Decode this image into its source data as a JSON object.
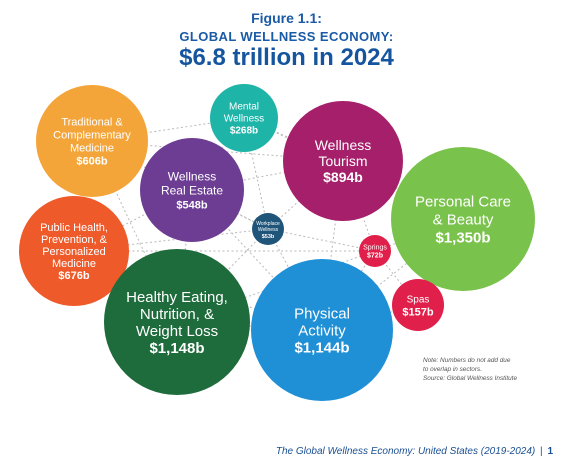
{
  "header": {
    "figure_label": "Figure 1.1:",
    "subtitle": "GLOBAL WELLNESS ECONOMY:",
    "title": "$6.8 trillion in 2024"
  },
  "bubbles": [
    {
      "id": "traditional",
      "lines": [
        "Traditional &",
        "Complementary",
        "Medicine"
      ],
      "value": "$606b",
      "color": "#f4a53a"
    },
    {
      "id": "mental",
      "lines": [
        "Mental",
        "Wellness"
      ],
      "value": "$268b",
      "color": "#1fb4a8"
    },
    {
      "id": "tourism",
      "lines": [
        "Wellness",
        "Tourism"
      ],
      "value": "$894b",
      "color": "#a51f6a"
    },
    {
      "id": "realestate",
      "lines": [
        "Wellness",
        "Real Estate"
      ],
      "value": "$548b",
      "color": "#6c3d92"
    },
    {
      "id": "personal",
      "lines": [
        "Personal Care",
        "& Beauty"
      ],
      "value": "$1,350b",
      "color": "#79c24b"
    },
    {
      "id": "public",
      "lines": [
        "Public Health,",
        "Prevention, &",
        "Personalized",
        "Medicine"
      ],
      "value": "$676b",
      "color": "#ee5a2a"
    },
    {
      "id": "workplace",
      "lines": [
        "Workplace",
        "Wellness"
      ],
      "value": "$53b",
      "color": "#20557a"
    },
    {
      "id": "springs",
      "lines": [
        "Springs"
      ],
      "value": "$72b",
      "color": "#e0204a"
    },
    {
      "id": "spas",
      "lines": [
        "Spas"
      ],
      "value": "$157b",
      "color": "#e0204a"
    },
    {
      "id": "eating",
      "lines": [
        "Healthy Eating,",
        "Nutrition, &",
        "Weight Loss"
      ],
      "value": "$1,148b",
      "color": "#1e6b3c"
    },
    {
      "id": "physical",
      "lines": [
        "Physical",
        "Activity"
      ],
      "value": "$1,144b",
      "color": "#1f8fd6"
    }
  ],
  "note": {
    "lines": [
      "Note: Numbers do not add due",
      "to overlap in sectors.",
      "Source: Global Wellness Institute"
    ]
  },
  "footer": {
    "text": "The Global Wellness Economy: United States (2019-2024)",
    "separator": "|",
    "page_number": "1"
  }
}
